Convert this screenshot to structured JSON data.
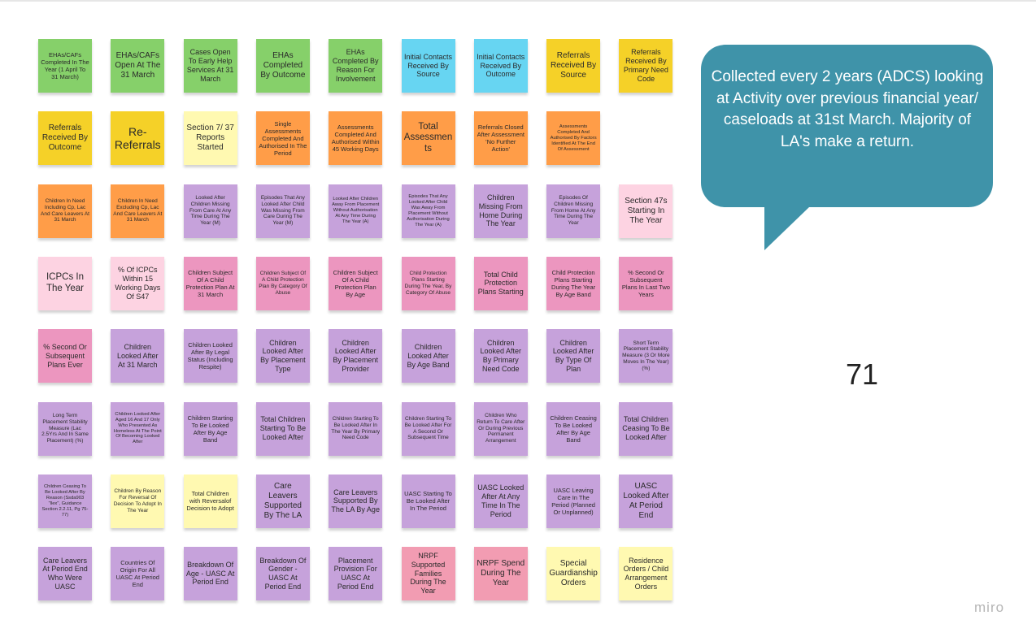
{
  "notes": [
    [
      {
        "text": "EHAs/CAFs Completed In The Year (1 April To 31 March)",
        "color": "#86d06a"
      },
      {
        "text": "EHAs/CAFs Open At The 31 March",
        "color": "#86d06a"
      },
      {
        "text": "Cases Open To Early Help Services At 31 March",
        "color": "#86d06a"
      },
      {
        "text": "EHAs Completed By Outcome",
        "color": "#86d06a"
      },
      {
        "text": "EHAs Completed By Reason For Involvement",
        "color": "#86d06a"
      },
      {
        "text": "Initial Contacts Received By Source",
        "color": "#67d5f2"
      },
      {
        "text": "Initial Contacts Received By Outcome",
        "color": "#67d5f2"
      },
      {
        "text": "Referrals Received By Source",
        "color": "#f5d128"
      },
      {
        "text": "Referrals Received By Primary Need Code",
        "color": "#f5d128"
      }
    ],
    [
      {
        "text": "Referrals Received By Outcome",
        "color": "#f5d128"
      },
      {
        "text": "Re-Referrals",
        "color": "#f5d128"
      },
      {
        "text": "Section 7/ 37 Reports Started",
        "color": "#fff9b1"
      },
      {
        "text": "Single Assessments Completed And Authorised In The Period",
        "color": "#ff9d48"
      },
      {
        "text": "Assessments Completed And Authorised Within 45 Working Days",
        "color": "#ff9d48"
      },
      {
        "text": "Total Assessments",
        "color": "#ff9d48"
      },
      {
        "text": "Referrals Closed After Assessment 'No Further Action'",
        "color": "#ff9d48"
      },
      {
        "text": "Assessments Completed And Authorised By Factors Identified At The End Of Assessment",
        "color": "#ff9d48"
      }
    ],
    [
      {
        "text": "Children In Need Including Cp, Lac And Care Leavers At 31 March",
        "color": "#ff9d48"
      },
      {
        "text": "Children In Need Excluding Cp, Lac And Care Leavers At 31 March",
        "color": "#ff9d48"
      },
      {
        "text": "Looked After Children Missing From Care At Any Time During The Year (M)",
        "color": "#c6a2db"
      },
      {
        "text": "Episodes That Any Looked After Child Was Missing From Care During The Year (M)",
        "color": "#c6a2db"
      },
      {
        "text": "Looked After Children Away From Placement Without Authorisation At Any Time During The Year (A)",
        "color": "#c6a2db"
      },
      {
        "text": "Episodes That Any Looked After Child Was Away From Placement Without Authorisation During The Year (A)",
        "color": "#c6a2db"
      },
      {
        "text": "Children Missing From Home During The Year",
        "color": "#c6a2db"
      },
      {
        "text": "Episodes Of Children Missing From Home At Any Time During The Year",
        "color": "#c6a2db"
      },
      {
        "text": "Section 47s Starting In The Year",
        "color": "#fdd3e2"
      }
    ],
    [
      {
        "text": "ICPCs In The Year",
        "color": "#fdd3e2"
      },
      {
        "text": "% Of ICPCs Within 15 Working Days Of S47",
        "color": "#fdd3e2"
      },
      {
        "text": "Children Subject Of A Child Protection Plan At 31 March",
        "color": "#ec96bf"
      },
      {
        "text": "Children Subject Of A Child Protection Plan By Category Of Abuse",
        "color": "#ec96bf"
      },
      {
        "text": "Children Subject Of A Child Protection Plan By Age",
        "color": "#ec96bf"
      },
      {
        "text": "Child Protection Plans Starting During The Year, By Category Of Abuse",
        "color": "#ec96bf"
      },
      {
        "text": "Total Child Protection Plans Starting",
        "color": "#ec96bf"
      },
      {
        "text": "Child Protection Plans Starting During The Year By Age Band",
        "color": "#ec96bf"
      },
      {
        "text": "% Second Or Subsequent Plans In Last Two Years",
        "color": "#ec96bf"
      }
    ],
    [
      {
        "text": "% Second Or Subsequent Plans Ever",
        "color": "#ec96bf"
      },
      {
        "text": "Children Looked After At 31 March",
        "color": "#c6a2db"
      },
      {
        "text": "Children Looked After By Legal Status (Including Respite)",
        "color": "#c6a2db"
      },
      {
        "text": "Children Looked After By Placement Type",
        "color": "#c6a2db"
      },
      {
        "text": "Children Looked After By Placement Provider",
        "color": "#c6a2db"
      },
      {
        "text": "Children Looked After By Age Band",
        "color": "#c6a2db"
      },
      {
        "text": "Children Looked After By Primary Need Code",
        "color": "#c6a2db"
      },
      {
        "text": "Children Looked After By Type Of Plan",
        "color": "#c6a2db"
      },
      {
        "text": "Short Term Placement Stability Measure (3 Or More Moves In The Year) (%)",
        "color": "#c6a2db"
      }
    ],
    [
      {
        "text": "Long Term Placement Stability Measure (Lac 2.5Yrs And In Same Placement) (%)",
        "color": "#c6a2db"
      },
      {
        "text": "Children Looked After Aged 16 And 17 Only Who Presented As Homeless At The Point Of Becoming Looked After",
        "color": "#c6a2db"
      },
      {
        "text": "Children Starting To Be Looked After By Age Band",
        "color": "#c6a2db"
      },
      {
        "text": "Total Children Starting To Be Looked After",
        "color": "#c6a2db"
      },
      {
        "text": "Children Starting To Be Looked After In The Year By Primary Need Code",
        "color": "#c6a2db"
      },
      {
        "text": "Children Starting To Be Looked After For A Second Or Subsequent Time",
        "color": "#c6a2db"
      },
      {
        "text": "Children Who Return To Care After Or During Previous Permanent Arrangement",
        "color": "#c6a2db"
      },
      {
        "text": "Children Ceasing To Be Looked After By Age Band",
        "color": "#c6a2db"
      },
      {
        "text": "Total Children Ceasing To Be Looked After",
        "color": "#c6a2db"
      }
    ],
    [
      {
        "text": "Children Ceasing To Be Looked After By Reason (Ssda903 \"llex\", Guidance Section 2.2.11, Pg 75-77)",
        "color": "#c6a2db"
      },
      {
        "text": "Children By Reason For Reversal Of Decision To Adopt In The Year",
        "color": "#fff9b1"
      },
      {
        "text": "Total Children with Reversalof Decision to Adopt",
        "color": "#fff9b1"
      },
      {
        "text": "Care Leavers Supported By The LA",
        "color": "#c6a2db"
      },
      {
        "text": "Care Leavers Supported By The LA By Age",
        "color": "#c6a2db"
      },
      {
        "text": "UASC Starting To Be Looked After In The Period",
        "color": "#c6a2db"
      },
      {
        "text": "UASC Looked After At Any Time In The Period",
        "color": "#c6a2db"
      },
      {
        "text": "UASC Leaving Care In The Period (Planned Or Unplanned)",
        "color": "#c6a2db"
      },
      {
        "text": "UASC Looked After At Period End",
        "color": "#c6a2db"
      }
    ],
    [
      {
        "text": "Care Leavers At Period End Who Were UASC",
        "color": "#c6a2db"
      },
      {
        "text": "Countries Of Origin For All UASC At Period End",
        "color": "#c6a2db"
      },
      {
        "text": "Breakdown Of Age - UASC At Period End",
        "color": "#c6a2db"
      },
      {
        "text": "Breakdown Of Gender - UASC At Period End",
        "color": "#c6a2db"
      },
      {
        "text": "Placement Provision For UASC At Period End",
        "color": "#c6a2db"
      },
      {
        "text": "NRPF Supported Families During The Year",
        "color": "#f29cb2"
      },
      {
        "text": "NRPF Spend During The Year",
        "color": "#f29cb2"
      },
      {
        "text": "Special Guardianship Orders",
        "color": "#fff9b1"
      },
      {
        "text": "Residence Orders / Child Arrangement Orders",
        "color": "#fff9b1"
      }
    ]
  ],
  "bubble": {
    "text": "Collected every 2 years (ADCS) looking at Activity over previous financial year/ caseloads at 31st March. Majority of LA's make a return.",
    "color": "#3f93a9"
  },
  "count": "71",
  "logo": "miro"
}
